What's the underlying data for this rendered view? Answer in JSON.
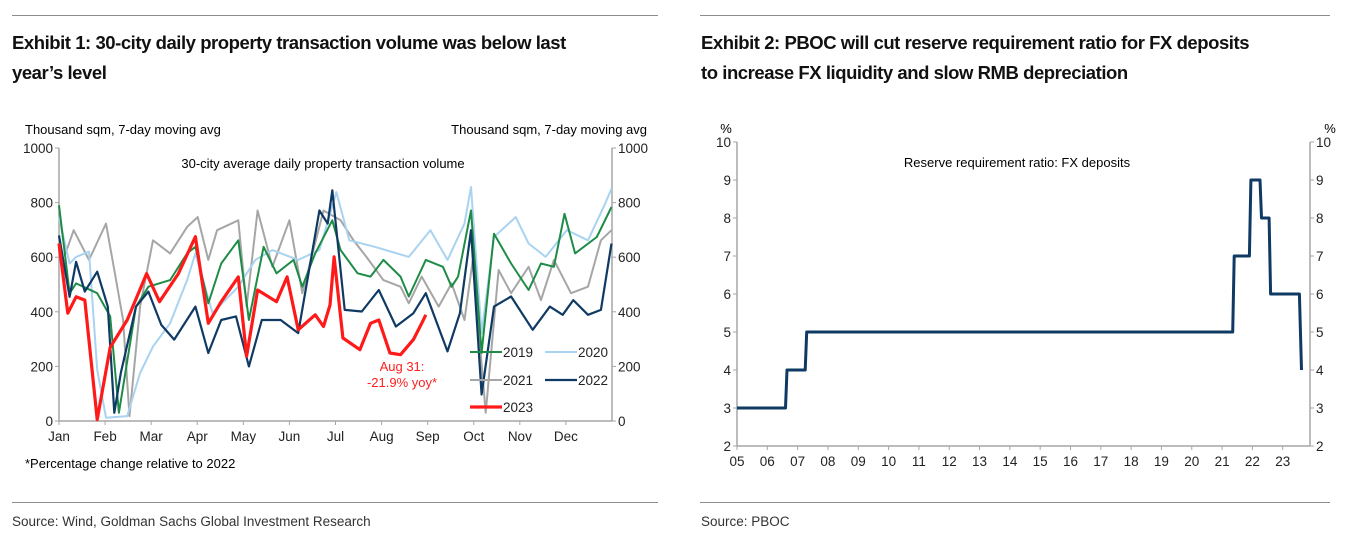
{
  "exhibit1": {
    "title_line1": "Exhibit 1: 30-city daily property transaction volume was below last",
    "title_line2": "year’s level",
    "footnote": "*Percentage change relative to 2022",
    "source": "Source: Wind, Goldman Sachs Global Investment Research"
  },
  "exhibit2": {
    "title_line1": "Exhibit 2: PBOC will cut reserve requirement ratio for FX deposits",
    "title_line2": "to increase FX liquidity and slow RMB depreciation",
    "source": "Source: PBOC"
  },
  "chart_data": [
    {
      "type": "line",
      "title": "30-city average daily property transaction volume",
      "ylabel_left": "Thousand sqm, 7-day moving avg",
      "ylabel_right": "Thousand sqm, 7-day moving avg",
      "x_unit": "months since Jan 1",
      "xlim": [
        0,
        12
      ],
      "ylim": [
        0,
        1000
      ],
      "yticks": [
        0,
        200,
        400,
        600,
        800,
        1000
      ],
      "xtick_labels": [
        "Jan",
        "Feb",
        "Mar",
        "Apr",
        "May",
        "Jun",
        "Jul",
        "Aug",
        "Sep",
        "Oct",
        "Nov",
        "Dec"
      ],
      "grid": false,
      "annotation": {
        "line1": "Aug 31:",
        "line2": "-21.9% yoy*",
        "color": "#ff2020"
      },
      "series": [
        {
          "name": "2021",
          "color": "#a6a6a6",
          "width": 2,
          "x": [
            0,
            0.14,
            0.32,
            0.65,
            1.02,
            1.2,
            1.39,
            1.53,
            1.76,
            2.04,
            2.41,
            2.78,
            3.01,
            3.24,
            3.43,
            3.89,
            4.07,
            4.31,
            4.63,
            5,
            5.28,
            5.74,
            6.11,
            6.39,
            6.67,
            7.04,
            7.41,
            7.59,
            7.87,
            8.24,
            8.52,
            8.8,
            8.98,
            9.26,
            9.54,
            9.81,
            10.19,
            10.46,
            10.74,
            11.11,
            11.48,
            11.76,
            11.99
          ],
          "y": [
            760,
            614,
            699,
            590,
            723,
            553,
            370,
            18,
            419,
            662,
            614,
            711,
            747,
            590,
            699,
            735,
            419,
            771,
            565,
            735,
            468,
            771,
            735,
            662,
            601,
            516,
            492,
            431,
            529,
            419,
            504,
            370,
            590,
            30,
            553,
            468,
            565,
            443,
            590,
            468,
            492,
            662,
            699
          ]
        },
        {
          "name": "2020",
          "color": "#a9d3f0",
          "width": 2,
          "x": [
            0,
            0.23,
            0.37,
            0.65,
            0.83,
            1.02,
            1.48,
            1.76,
            2.04,
            2.41,
            2.78,
            2.96,
            3.33,
            3.89,
            4.26,
            4.63,
            5.19,
            5.65,
            6.02,
            6.3,
            6.85,
            7.59,
            8.06,
            8.43,
            8.8,
            8.94,
            9.17,
            9.44,
            9.91,
            10.19,
            10.56,
            11.02,
            11.48,
            11.85,
            11.99
          ],
          "y": [
            747,
            577,
            601,
            620,
            188,
            12,
            18,
            176,
            273,
            358,
            516,
            614,
            395,
            492,
            590,
            626,
            590,
            626,
            838,
            662,
            638,
            601,
            699,
            590,
            723,
            857,
            322,
            674,
            747,
            650,
            601,
            699,
            662,
            796,
            851
          ]
        },
        {
          "name": "2019",
          "color": "#1e8c46",
          "width": 2,
          "x": [
            0,
            0.23,
            0.37,
            0.83,
            1.11,
            1.3,
            1.67,
            1.94,
            2.41,
            2.78,
            2.96,
            3.24,
            3.52,
            3.89,
            4.12,
            4.44,
            4.72,
            5.09,
            5.28,
            5.56,
            5.93,
            6.11,
            6.48,
            6.76,
            7.04,
            7.41,
            7.59,
            7.96,
            8.33,
            8.52,
            8.66,
            8.94,
            9.17,
            9.44,
            9.81,
            10.19,
            10.46,
            10.74,
            10.97,
            11.2,
            11.67,
            11.99
          ],
          "y": [
            790,
            468,
            504,
            468,
            383,
            30,
            419,
            492,
            516,
            614,
            638,
            431,
            577,
            662,
            370,
            638,
            541,
            590,
            492,
            614,
            735,
            626,
            541,
            529,
            590,
            529,
            456,
            590,
            565,
            492,
            529,
            771,
            249,
            686,
            577,
            480,
            577,
            565,
            759,
            614,
            674,
            784
          ]
        },
        {
          "name": "2022",
          "color": "#0f3a63",
          "width": 2.2,
          "x": [
            0,
            0.23,
            0.37,
            0.56,
            0.83,
            1.06,
            1.2,
            1.34,
            1.67,
            1.94,
            2.22,
            2.5,
            2.96,
            3.24,
            3.52,
            3.84,
            4.12,
            4.4,
            4.81,
            5.19,
            5.65,
            5.83,
            5.93,
            6.2,
            6.57,
            6.94,
            7.31,
            7.69,
            7.96,
            8.43,
            8.7,
            8.94,
            9.17,
            9.44,
            9.81,
            10.28,
            10.65,
            10.93,
            11.16,
            11.48,
            11.76,
            11.99
          ],
          "y": [
            680,
            455,
            583,
            474,
            547,
            419,
            30,
            176,
            419,
            474,
            352,
            298,
            419,
            249,
            370,
            383,
            200,
            370,
            370,
            322,
            771,
            723,
            845,
            407,
            401,
            480,
            346,
            395,
            468,
            255,
            395,
            699,
            97,
            419,
            456,
            334,
            419,
            389,
            443,
            389,
            407,
            650
          ]
        },
        {
          "name": "2023",
          "color": "#ff1a1a",
          "width": 3.2,
          "x": [
            0,
            0.19,
            0.37,
            0.56,
            0.83,
            1.11,
            1.48,
            1.9,
            2.18,
            2.59,
            2.96,
            3.24,
            3.52,
            3.89,
            4.07,
            4.31,
            4.72,
            4.95,
            5.19,
            5.56,
            5.74,
            5.88,
            5.97,
            6.16,
            6.53,
            6.76,
            6.94,
            7.18,
            7.41,
            7.69,
            7.87,
            7.96
          ],
          "y": [
            650,
            395,
            455,
            443,
            5,
            270,
            370,
            540,
            437,
            540,
            675,
            358,
            437,
            528,
            237,
            480,
            437,
            528,
            334,
            389,
            346,
            425,
            601,
            304,
            261,
            358,
            370,
            249,
            243,
            298,
            358,
            389
          ]
        }
      ],
      "legend_order": [
        "2019",
        "2020",
        "2021",
        "2022",
        "2023"
      ]
    },
    {
      "type": "line",
      "title": "Reserve requirement ratio: FX deposits",
      "ylabel_left": "%",
      "ylabel_right": "%",
      "x_unit": "year",
      "xlim": [
        2005,
        2023.9
      ],
      "ylim": [
        2,
        10
      ],
      "yticks": [
        2,
        3,
        4,
        5,
        6,
        7,
        8,
        9,
        10
      ],
      "xtick_labels": [
        "05",
        "06",
        "07",
        "08",
        "09",
        "10",
        "11",
        "12",
        "13",
        "14",
        "15",
        "16",
        "17",
        "18",
        "19",
        "20",
        "21",
        "22",
        "23"
      ],
      "grid": false,
      "series": [
        {
          "name": "Reserve requirement ratio: FX deposits",
          "color": "#0f3a63",
          "width": 3,
          "x": [
            2005,
            2006.6,
            2006.65,
            2007.25,
            2007.3,
            2021.35,
            2021.4,
            2021.9,
            2021.95,
            2022.25,
            2022.3,
            2022.55,
            2022.6,
            2023.55,
            2023.62
          ],
          "y": [
            3,
            3,
            4,
            4,
            5,
            5,
            7,
            7,
            9,
            9,
            8,
            8,
            6,
            6,
            4
          ]
        }
      ]
    }
  ]
}
